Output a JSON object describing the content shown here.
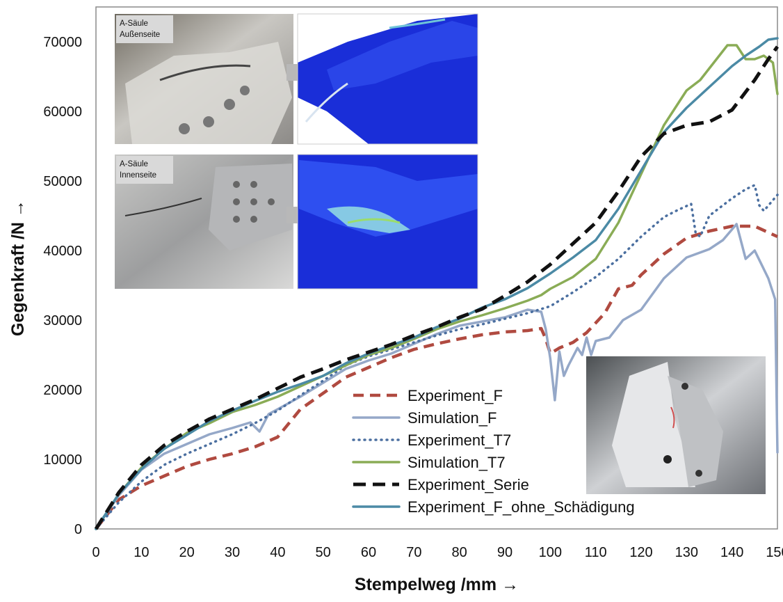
{
  "chart_data": {
    "type": "line",
    "xlabel": "Stempelweg /mm →",
    "ylabel": "Gegenkraft /N →",
    "xlim": [
      0,
      150
    ],
    "ylim": [
      0,
      70000
    ],
    "x_ticks": [
      0,
      10,
      20,
      30,
      40,
      50,
      60,
      70,
      80,
      90,
      100,
      110,
      120,
      130,
      140,
      150
    ],
    "y_ticks": [
      0,
      10000,
      20000,
      30000,
      40000,
      50000,
      60000,
      70000
    ],
    "grid": false,
    "legend_position": "bottom-center",
    "series": [
      {
        "name": "Experiment_F",
        "color": "#b04a40",
        "style": "dashed-thick",
        "points": [
          [
            0,
            0
          ],
          [
            5,
            4200
          ],
          [
            10,
            6200
          ],
          [
            15,
            7600
          ],
          [
            20,
            9000
          ],
          [
            25,
            10000
          ],
          [
            30,
            10800
          ],
          [
            35,
            11800
          ],
          [
            40,
            13200
          ],
          [
            45,
            17200
          ],
          [
            50,
            19500
          ],
          [
            55,
            21800
          ],
          [
            60,
            23200
          ],
          [
            65,
            24600
          ],
          [
            70,
            25800
          ],
          [
            75,
            26600
          ],
          [
            80,
            27300
          ],
          [
            85,
            27900
          ],
          [
            90,
            28300
          ],
          [
            95,
            28500
          ],
          [
            98,
            28800
          ],
          [
            99,
            27300
          ],
          [
            100,
            25200
          ],
          [
            102,
            26000
          ],
          [
            105,
            26800
          ],
          [
            108,
            28200
          ],
          [
            112,
            31000
          ],
          [
            115,
            34500
          ],
          [
            118,
            35000
          ],
          [
            120,
            36500
          ],
          [
            125,
            39500
          ],
          [
            130,
            41800
          ],
          [
            135,
            42800
          ],
          [
            140,
            43500
          ],
          [
            145,
            43500
          ],
          [
            150,
            42000
          ]
        ]
      },
      {
        "name": "Simulation_F",
        "color": "#95a8c8",
        "style": "solid",
        "points": [
          [
            0,
            0
          ],
          [
            5,
            4800
          ],
          [
            10,
            8500
          ],
          [
            15,
            10800
          ],
          [
            20,
            12200
          ],
          [
            25,
            13600
          ],
          [
            30,
            14500
          ],
          [
            34,
            15300
          ],
          [
            36,
            14000
          ],
          [
            38,
            16500
          ],
          [
            40,
            17200
          ],
          [
            45,
            19000
          ],
          [
            50,
            21000
          ],
          [
            55,
            23000
          ],
          [
            60,
            24200
          ],
          [
            65,
            25200
          ],
          [
            70,
            26600
          ],
          [
            75,
            28000
          ],
          [
            80,
            29200
          ],
          [
            85,
            29800
          ],
          [
            90,
            30400
          ],
          [
            95,
            31500
          ],
          [
            98,
            31200
          ],
          [
            99,
            28700
          ],
          [
            100,
            24500
          ],
          [
            101,
            18500
          ],
          [
            102,
            25500
          ],
          [
            103,
            22000
          ],
          [
            104,
            23500
          ],
          [
            106,
            26000
          ],
          [
            107,
            25000
          ],
          [
            108,
            27500
          ],
          [
            109,
            25000
          ],
          [
            110,
            27000
          ],
          [
            113,
            27500
          ],
          [
            116,
            30000
          ],
          [
            120,
            31500
          ],
          [
            125,
            36000
          ],
          [
            130,
            39000
          ],
          [
            135,
            40200
          ],
          [
            138,
            41500
          ],
          [
            141,
            43800
          ],
          [
            143,
            38800
          ],
          [
            145,
            40000
          ],
          [
            148,
            36000
          ],
          [
            149.5,
            33000
          ],
          [
            150,
            11000
          ]
        ]
      },
      {
        "name": "Experiment_T7",
        "color": "#4b6fa0",
        "style": "dotted",
        "points": [
          [
            0,
            0
          ],
          [
            5,
            3800
          ],
          [
            10,
            6800
          ],
          [
            15,
            9200
          ],
          [
            20,
            10800
          ],
          [
            25,
            12200
          ],
          [
            30,
            13600
          ],
          [
            35,
            15200
          ],
          [
            40,
            17000
          ],
          [
            45,
            19200
          ],
          [
            50,
            21300
          ],
          [
            55,
            23500
          ],
          [
            60,
            24800
          ],
          [
            65,
            25800
          ],
          [
            70,
            26800
          ],
          [
            75,
            27800
          ],
          [
            80,
            28700
          ],
          [
            85,
            29400
          ],
          [
            90,
            30200
          ],
          [
            95,
            31000
          ],
          [
            100,
            32000
          ],
          [
            105,
            34000
          ],
          [
            110,
            36200
          ],
          [
            115,
            38800
          ],
          [
            120,
            42000
          ],
          [
            125,
            44800
          ],
          [
            128,
            45800
          ],
          [
            131,
            46700
          ],
          [
            132,
            42500
          ],
          [
            133,
            42000
          ],
          [
            135,
            45000
          ],
          [
            140,
            47500
          ],
          [
            143,
            48800
          ],
          [
            145,
            49400
          ],
          [
            146,
            46500
          ],
          [
            147,
            45700
          ],
          [
            150,
            48000
          ]
        ]
      },
      {
        "name": "Simulation_T7",
        "color": "#8aac56",
        "style": "solid",
        "points": [
          [
            0,
            0
          ],
          [
            5,
            5000
          ],
          [
            10,
            8800
          ],
          [
            15,
            11500
          ],
          [
            20,
            13800
          ],
          [
            25,
            15200
          ],
          [
            30,
            16800
          ],
          [
            35,
            17800
          ],
          [
            40,
            19000
          ],
          [
            45,
            20500
          ],
          [
            50,
            22000
          ],
          [
            55,
            23500
          ],
          [
            60,
            25000
          ],
          [
            65,
            26000
          ],
          [
            70,
            27300
          ],
          [
            75,
            28700
          ],
          [
            80,
            29800
          ],
          [
            85,
            30700
          ],
          [
            90,
            31700
          ],
          [
            95,
            32800
          ],
          [
            98,
            33600
          ],
          [
            100,
            34500
          ],
          [
            105,
            36200
          ],
          [
            110,
            38800
          ],
          [
            115,
            44000
          ],
          [
            120,
            51000
          ],
          [
            125,
            58000
          ],
          [
            130,
            63000
          ],
          [
            133,
            64500
          ],
          [
            136,
            67000
          ],
          [
            139,
            69500
          ],
          [
            141,
            69500
          ],
          [
            143,
            67500
          ],
          [
            145,
            67500
          ],
          [
            147,
            68000
          ],
          [
            149,
            67000
          ],
          [
            150,
            62500
          ]
        ]
      },
      {
        "name": "Experiment_Serie",
        "color": "#111111",
        "style": "dashed-bold",
        "points": [
          [
            0,
            0
          ],
          [
            5,
            5200
          ],
          [
            10,
            9200
          ],
          [
            15,
            12000
          ],
          [
            20,
            14000
          ],
          [
            25,
            15800
          ],
          [
            30,
            17200
          ],
          [
            35,
            18600
          ],
          [
            40,
            20200
          ],
          [
            45,
            21800
          ],
          [
            50,
            23000
          ],
          [
            55,
            24300
          ],
          [
            60,
            25400
          ],
          [
            65,
            26500
          ],
          [
            70,
            27800
          ],
          [
            75,
            29000
          ],
          [
            80,
            30400
          ],
          [
            85,
            31600
          ],
          [
            90,
            33500
          ],
          [
            95,
            35500
          ],
          [
            100,
            38000
          ],
          [
            105,
            41000
          ],
          [
            110,
            44000
          ],
          [
            115,
            48500
          ],
          [
            120,
            53500
          ],
          [
            125,
            56800
          ],
          [
            130,
            58000
          ],
          [
            135,
            58500
          ],
          [
            140,
            60200
          ],
          [
            145,
            64500
          ],
          [
            148,
            67500
          ],
          [
            150,
            69300
          ]
        ]
      },
      {
        "name": "Experiment_F_ohne_Schädigung",
        "color": "#4b8aa5",
        "style": "solid",
        "points": [
          [
            0,
            0
          ],
          [
            5,
            5000
          ],
          [
            10,
            8600
          ],
          [
            15,
            11500
          ],
          [
            20,
            13500
          ],
          [
            25,
            15500
          ],
          [
            30,
            17000
          ],
          [
            35,
            18400
          ],
          [
            40,
            19700
          ],
          [
            45,
            20800
          ],
          [
            50,
            22000
          ],
          [
            55,
            23800
          ],
          [
            60,
            25200
          ],
          [
            65,
            26400
          ],
          [
            70,
            27500
          ],
          [
            75,
            29000
          ],
          [
            80,
            30200
          ],
          [
            85,
            31800
          ],
          [
            90,
            33000
          ],
          [
            95,
            34600
          ],
          [
            100,
            36700
          ],
          [
            105,
            39000
          ],
          [
            110,
            41500
          ],
          [
            115,
            46000
          ],
          [
            120,
            51500
          ],
          [
            125,
            57000
          ],
          [
            130,
            60500
          ],
          [
            135,
            63500
          ],
          [
            140,
            66500
          ],
          [
            143,
            68000
          ],
          [
            146,
            69300
          ],
          [
            148,
            70300
          ],
          [
            150,
            70500
          ]
        ]
      }
    ]
  },
  "photos": {
    "top_left_label_line1": "A-Säule",
    "top_left_label_line2": "Außenseite",
    "mid_left_label_line1": "A-Säule",
    "mid_left_label_line2": "Innenseite"
  }
}
